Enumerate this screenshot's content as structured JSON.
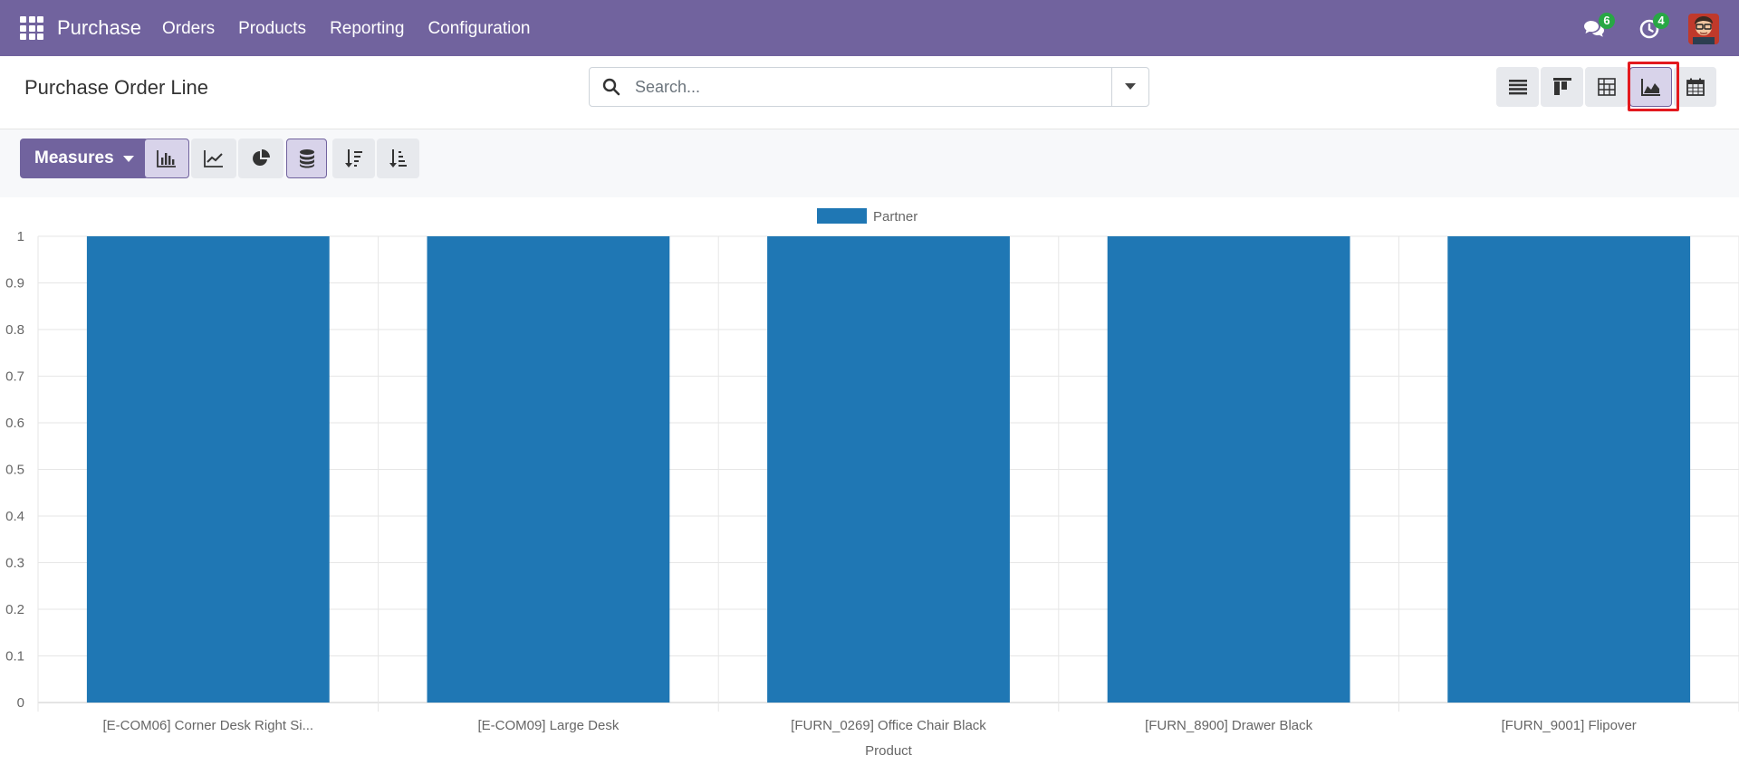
{
  "navbar": {
    "brand": "Purchase",
    "menu": [
      "Orders",
      "Products",
      "Reporting",
      "Configuration"
    ],
    "messages_count": "6",
    "activities_count": "4",
    "color": "#71639e"
  },
  "control_panel": {
    "title": "Purchase Order Line",
    "search_placeholder": "Search...",
    "views": [
      "list-view-icon",
      "kanban-view-icon",
      "pivot-view-icon",
      "graph-view-icon",
      "calendar-view-icon"
    ],
    "active_view": "graph-view-icon"
  },
  "toolbar": {
    "measures_label": "Measures",
    "chart_types": [
      "bar-chart-icon",
      "line-chart-icon",
      "pie-chart-icon"
    ],
    "active_chart_type": "bar-chart-icon",
    "stacked_active": true,
    "sort_buttons": [
      "sort-descending-icon",
      "sort-ascending-icon"
    ]
  },
  "chart_data": {
    "type": "bar",
    "categories": [
      "[E-COM06] Corner Desk Right Si...",
      "[E-COM09] Large Desk",
      "[FURN_0269] Office Chair Black",
      "[FURN_8900] Drawer Black",
      "[FURN_9001] Flipover"
    ],
    "series": [
      {
        "name": "Partner",
        "values": [
          1,
          1,
          1,
          1,
          1
        ],
        "color": "#1f77b4"
      }
    ],
    "xlabel": "Product",
    "ylabel": "",
    "ylim": [
      0,
      1
    ],
    "yticks": [
      "0",
      "0.1",
      "0.2",
      "0.3",
      "0.4",
      "0.5",
      "0.6",
      "0.7",
      "0.8",
      "0.9",
      "1"
    ],
    "grid": true,
    "legend": "top-center"
  }
}
